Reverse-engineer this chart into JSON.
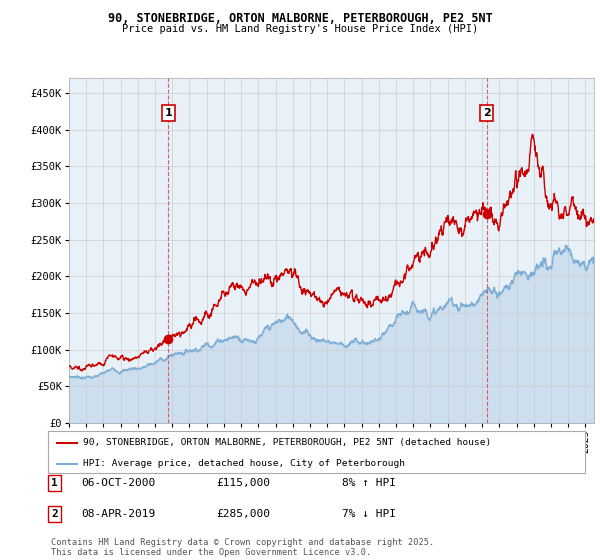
{
  "title1": "90, STONEBRIDGE, ORTON MALBORNE, PETERBOROUGH, PE2 5NT",
  "title2": "Price paid vs. HM Land Registry's House Price Index (HPI)",
  "xlim_start": 1995.0,
  "xlim_end": 2025.5,
  "ylim_min": 0,
  "ylim_max": 470000,
  "yticks": [
    0,
    50000,
    100000,
    150000,
    200000,
    250000,
    300000,
    350000,
    400000,
    450000
  ],
  "ytick_labels": [
    "£0",
    "£50K",
    "£100K",
    "£150K",
    "£200K",
    "£250K",
    "£300K",
    "£350K",
    "£400K",
    "£450K"
  ],
  "xticks": [
    1995,
    1996,
    1997,
    1998,
    1999,
    2000,
    2001,
    2002,
    2003,
    2004,
    2005,
    2006,
    2007,
    2008,
    2009,
    2010,
    2011,
    2012,
    2013,
    2014,
    2015,
    2016,
    2017,
    2018,
    2019,
    2020,
    2021,
    2022,
    2023,
    2024,
    2025
  ],
  "sale1_x": 2000.77,
  "sale1_y": 115000,
  "sale1_label": "1",
  "sale2_x": 2019.27,
  "sale2_y": 285000,
  "sale2_label": "2",
  "vline1_x": 2000.77,
  "vline2_x": 2019.27,
  "annotation1": "06-OCT-2000",
  "annotation1_price": "£115,000",
  "annotation1_hpi": "8% ↑ HPI",
  "annotation2": "08-APR-2019",
  "annotation2_price": "£285,000",
  "annotation2_hpi": "7% ↓ HPI",
  "legend_label1": "90, STONEBRIDGE, ORTON MALBORNE, PETERBOROUGH, PE2 5NT (detached house)",
  "legend_label2": "HPI: Average price, detached house, City of Peterborough",
  "footer": "Contains HM Land Registry data © Crown copyright and database right 2025.\nThis data is licensed under the Open Government Licence v3.0.",
  "line_color_red": "#cc0000",
  "line_color_blue": "#7dadd4",
  "fill_color_blue": "#ddeeff",
  "dot_color_red": "#cc0000",
  "bg_color": "#ffffff",
  "grid_color": "#cccccc",
  "chart_bg": "#e8f0f8"
}
